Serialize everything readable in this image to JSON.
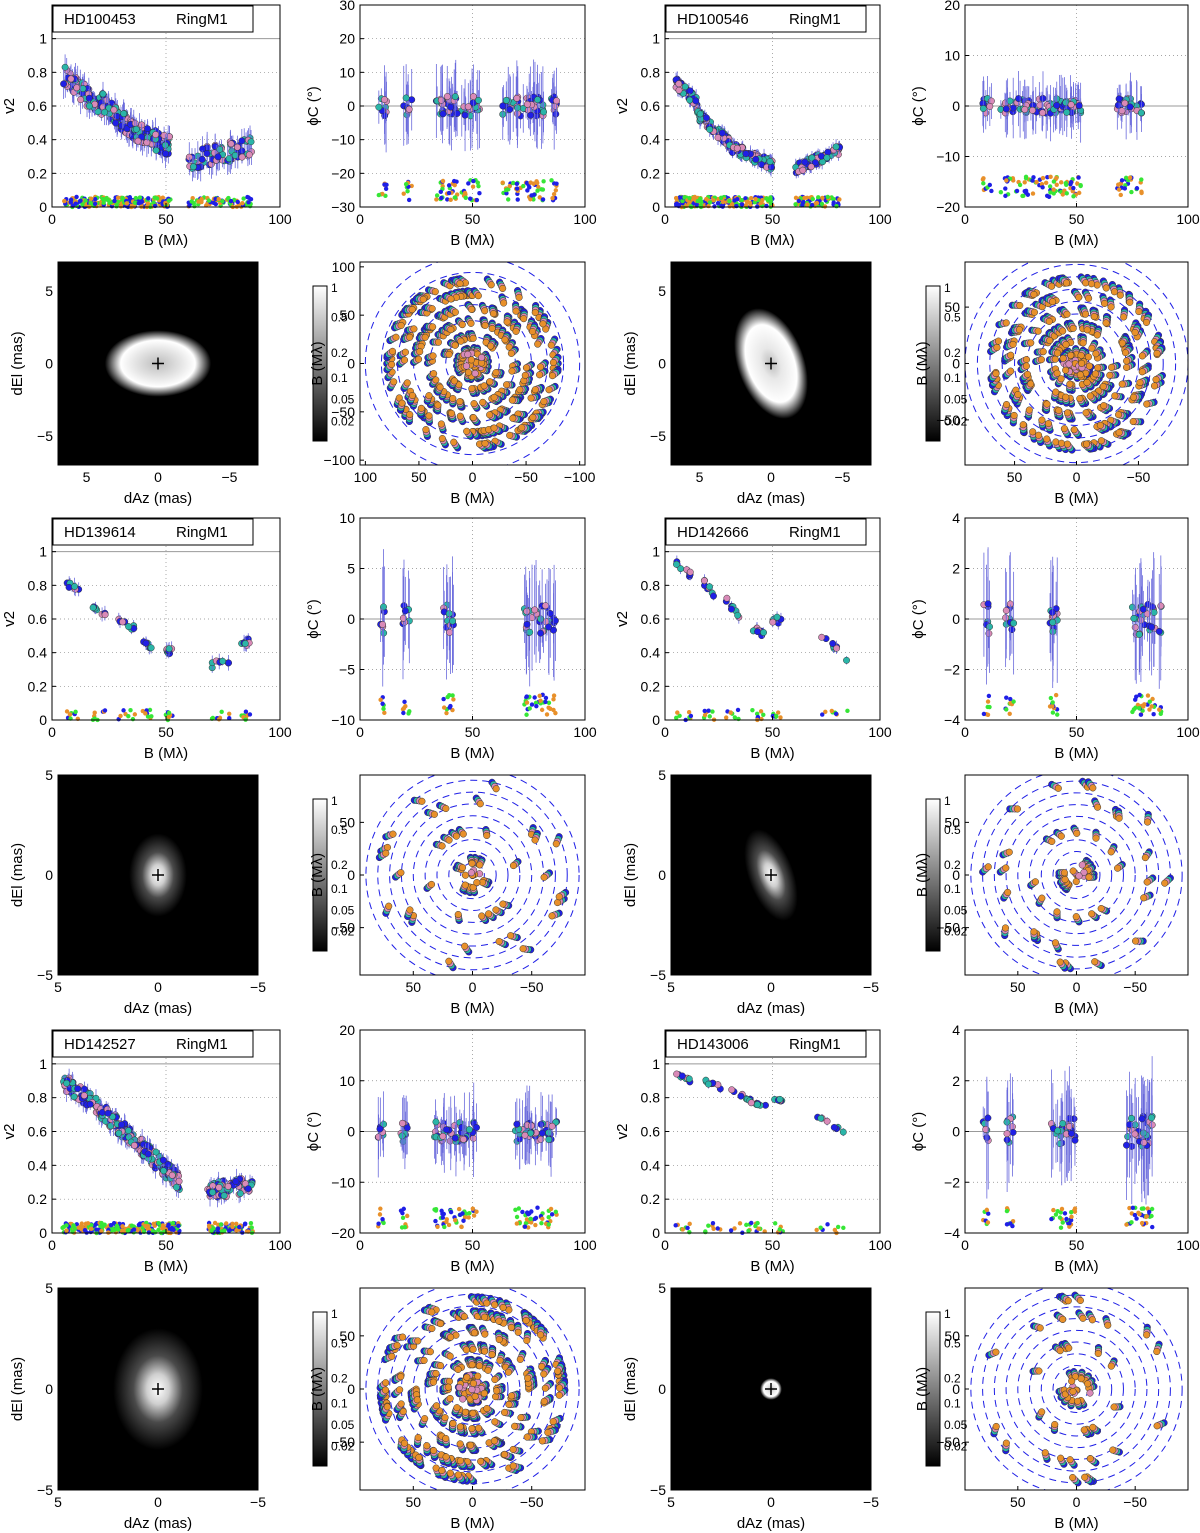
{
  "colors": {
    "blue": "#1f1fe6",
    "cyan": "#2ab5a8",
    "pink": "#d98ab8",
    "orange": "#e8902a",
    "green": "#36e636",
    "line": "#6a6adc",
    "frame": "#000000"
  },
  "labels": {
    "baseline": "B (Mλ)",
    "v2": "v2",
    "phi": "ϕC (°)",
    "dEl": "dEl (mas)",
    "dAz": "dAz (mas)"
  },
  "colorbar_ticks": [
    "1",
    "0.5",
    "0.2",
    "0.1",
    "0.05",
    "0.02"
  ],
  "chart_data": [
    {
      "type": "scatter",
      "panel": "v2",
      "star": "HD100453",
      "model": "RingM1",
      "xlim": [
        0,
        100
      ],
      "ylim": [
        0,
        1.2
      ],
      "xticks": [
        "0",
        "50",
        "100"
      ],
      "yticks": [
        "0",
        "0.2",
        "0.4",
        "0.6",
        "0.8",
        "1"
      ],
      "shape": {
        "type": "ring",
        "clusters": [
          [
            5,
            22,
            0.78,
            0.58
          ],
          [
            22,
            36,
            0.62,
            0.45
          ],
          [
            36,
            52,
            0.45,
            0.36
          ],
          [
            60,
            88,
            0.28,
            0.36
          ]
        ],
        "noise": 0.07,
        "scatter": 0.06
      }
    },
    {
      "type": "scatter",
      "panel": "phi",
      "star": "HD100453",
      "model": "RingM1",
      "xlim": [
        0,
        100
      ],
      "ylim": [
        -30,
        30
      ],
      "xticks": [
        "0",
        "50",
        "100"
      ],
      "yticks": [
        "-30",
        "-20",
        "-10",
        "0",
        "10",
        "20",
        "30"
      ],
      "shape": {
        "clusters": [
          [
            8,
            12
          ],
          [
            19,
            23
          ],
          [
            33,
            54
          ],
          [
            63,
            88
          ]
        ],
        "noise": 6,
        "low": -28
      }
    },
    {
      "type": "scatter",
      "panel": "v2",
      "star": "HD100546",
      "model": "RingM1",
      "xlim": [
        0,
        100
      ],
      "ylim": [
        0,
        1.2
      ],
      "xticks": [
        "0",
        "50",
        "100"
      ],
      "yticks": [
        "0",
        "0.2",
        "0.4",
        "0.6",
        "0.8",
        "1"
      ],
      "shape": {
        "type": "ring",
        "clusters": [
          [
            5,
            15,
            0.74,
            0.62
          ],
          [
            15,
            30,
            0.55,
            0.38
          ],
          [
            30,
            50,
            0.36,
            0.25
          ],
          [
            60,
            82,
            0.22,
            0.35
          ]
        ],
        "noise": 0.04,
        "scatter": 0.03
      }
    },
    {
      "type": "scatter",
      "panel": "phi",
      "star": "HD100546",
      "model": "RingM1",
      "xlim": [
        0,
        100
      ],
      "ylim": [
        -20,
        20
      ],
      "xticks": [
        "0",
        "50",
        "100"
      ],
      "yticks": [
        "-20",
        "-10",
        "0",
        "10",
        "20"
      ],
      "shape": {
        "clusters": [
          [
            8,
            12
          ],
          [
            16,
            52
          ],
          [
            68,
            80
          ]
        ],
        "noise": 3,
        "low": -18
      }
    },
    {
      "type": "heatmap",
      "panel": "image",
      "star": "HD100453",
      "xlim": [
        7,
        -7
      ],
      "ylim": [
        -7,
        7
      ],
      "xticks": [
        "5",
        "0",
        "-5"
      ],
      "yticks": [
        "-5",
        "0",
        "5"
      ],
      "shape": {
        "kind": "ring",
        "rx": 2.4,
        "ry": 1.5,
        "angle": 0,
        "width": 0.8
      }
    },
    {
      "type": "scatter",
      "panel": "uv",
      "star": "HD100453",
      "xlim": [
        105,
        -105
      ],
      "ylim": [
        -105,
        105
      ],
      "xticks": [
        "100",
        "50",
        "0",
        "-50",
        "-100"
      ],
      "yticks": [
        "-100",
        "-50",
        "0",
        "50",
        "100"
      ],
      "shape": {
        "radii": [
          15,
          28,
          42,
          55,
          68,
          80
        ],
        "rings": [
          10,
          25,
          40,
          55,
          70,
          85,
          100
        ]
      }
    },
    {
      "type": "heatmap",
      "panel": "image",
      "star": "HD100546",
      "xlim": [
        7,
        -7
      ],
      "ylim": [
        -7,
        7
      ],
      "xticks": [
        "5",
        "0",
        "-5"
      ],
      "yticks": [
        "-5",
        "0",
        "5"
      ],
      "shape": {
        "kind": "ring",
        "rx": 1.5,
        "ry": 2.6,
        "angle": -20,
        "width": 0.9
      }
    },
    {
      "type": "scatter",
      "panel": "uv",
      "star": "HD100546",
      "xlim": [
        90,
        -90
      ],
      "ylim": [
        -90,
        90
      ],
      "xticks": [
        "50",
        "0",
        "-50"
      ],
      "yticks": [
        "-50",
        "0",
        "50"
      ],
      "shape": {
        "radii": [
          12,
          22,
          33,
          45,
          58,
          70
        ],
        "rings": [
          10,
          20,
          30,
          40,
          50,
          60,
          70,
          80,
          90
        ]
      }
    },
    {
      "type": "scatter",
      "panel": "v2",
      "star": "HD139614",
      "model": "RingM1",
      "xlim": [
        0,
        100
      ],
      "ylim": [
        0,
        1.2
      ],
      "xticks": [
        "0",
        "50",
        "100"
      ],
      "yticks": [
        "0",
        "0.2",
        "0.4",
        "0.6",
        "0.8",
        "1"
      ],
      "shape": {
        "type": "sparse",
        "clusters": [
          [
            5,
            12,
            0.82,
            0.76
          ],
          [
            18,
            24,
            0.66,
            0.62
          ],
          [
            28,
            36,
            0.6,
            0.55
          ],
          [
            40,
            44,
            0.47,
            0.44
          ],
          [
            50,
            55,
            0.42,
            0.4
          ],
          [
            70,
            78,
            0.33,
            0.35
          ],
          [
            83,
            88,
            0.45,
            0.47
          ]
        ],
        "noise": 0.04,
        "scatter": 0.02
      }
    },
    {
      "type": "scatter",
      "panel": "phi",
      "star": "HD139614",
      "model": "RingM1",
      "xlim": [
        0,
        100
      ],
      "ylim": [
        -10,
        10
      ],
      "xticks": [
        "0",
        "50",
        "100"
      ],
      "yticks": [
        "-10",
        "-5",
        "0",
        "5",
        "10"
      ],
      "shape": {
        "clusters": [
          [
            9,
            11
          ],
          [
            19,
            22
          ],
          [
            37,
            42
          ],
          [
            73,
            87
          ]
        ],
        "noise": 3,
        "low": -9.5
      }
    },
    {
      "type": "scatter",
      "panel": "v2",
      "star": "HD142666",
      "model": "RingM1",
      "xlim": [
        0,
        100
      ],
      "ylim": [
        0,
        1.2
      ],
      "xticks": [
        "0",
        "50",
        "100"
      ],
      "yticks": [
        "0",
        "0.2",
        "0.4",
        "0.6",
        "0.8",
        "1"
      ],
      "shape": {
        "type": "sparse",
        "clusters": [
          [
            5,
            12,
            0.93,
            0.86
          ],
          [
            18,
            24,
            0.82,
            0.72
          ],
          [
            28,
            36,
            0.72,
            0.58
          ],
          [
            40,
            46,
            0.55,
            0.5
          ],
          [
            50,
            56,
            0.6,
            0.58
          ],
          [
            72,
            86,
            0.5,
            0.35
          ]
        ],
        "noise": 0.03,
        "scatter": 0.02
      }
    },
    {
      "type": "scatter",
      "panel": "phi",
      "star": "HD142666",
      "model": "RingM1",
      "xlim": [
        0,
        100
      ],
      "ylim": [
        -4,
        4
      ],
      "xticks": [
        "0",
        "50",
        "100"
      ],
      "yticks": [
        "-4",
        "-2",
        "0",
        "2",
        "4"
      ],
      "shape": {
        "clusters": [
          [
            8,
            11
          ],
          [
            18,
            22
          ],
          [
            38,
            43
          ],
          [
            75,
            88
          ]
        ],
        "noise": 1.3,
        "low": -3.8
      }
    },
    {
      "type": "heatmap",
      "panel": "image",
      "star": "HD139614",
      "xlim": [
        5,
        -5
      ],
      "ylim": [
        -5,
        5
      ],
      "xticks": [
        "5",
        "0",
        "-5"
      ],
      "yticks": [
        "-5",
        "0",
        "5"
      ],
      "shape": {
        "kind": "blob",
        "rx": 0.45,
        "ry": 0.65,
        "angle": 0
      }
    },
    {
      "type": "scatter",
      "panel": "uv",
      "star": "HD139614",
      "xlim": [
        95,
        -95
      ],
      "ylim": [
        -95,
        95
      ],
      "xticks": [
        "50",
        "0",
        "-50"
      ],
      "yticks": [
        "-50",
        "0",
        "50"
      ],
      "shape": {
        "radii": [
          15,
          40,
          65,
          80
        ],
        "sparse": true,
        "rings": [
          10,
          20,
          30,
          40,
          50,
          60,
          70,
          80,
          90
        ]
      }
    },
    {
      "type": "heatmap",
      "panel": "image",
      "star": "HD142666",
      "xlim": [
        5,
        -5
      ],
      "ylim": [
        -5,
        5
      ],
      "xticks": [
        "5",
        "0",
        "-5"
      ],
      "yticks": [
        "-5",
        "0",
        "5"
      ],
      "shape": {
        "kind": "blob",
        "rx": 0.35,
        "ry": 0.75,
        "angle": -20
      }
    },
    {
      "type": "scatter",
      "panel": "uv",
      "star": "HD142666",
      "xlim": [
        95,
        -95
      ],
      "ylim": [
        -95,
        95
      ],
      "xticks": [
        "50",
        "0",
        "-50"
      ],
      "yticks": [
        "-50",
        "0",
        "50"
      ],
      "shape": {
        "radii": [
          15,
          40,
          65,
          80
        ],
        "sparse": true,
        "rings": [
          10,
          20,
          30,
          40,
          50,
          60,
          70,
          80,
          90
        ]
      }
    },
    {
      "type": "scatter",
      "panel": "v2",
      "star": "HD142527",
      "model": "RingM1",
      "xlim": [
        0,
        100
      ],
      "ylim": [
        0,
        1.2
      ],
      "xticks": [
        "0",
        "50",
        "100"
      ],
      "yticks": [
        "0",
        "0.2",
        "0.4",
        "0.6",
        "0.8",
        "1"
      ],
      "shape": {
        "type": "ring",
        "clusters": [
          [
            5,
            22,
            0.9,
            0.72
          ],
          [
            22,
            40,
            0.72,
            0.5
          ],
          [
            40,
            56,
            0.5,
            0.3
          ],
          [
            68,
            88,
            0.25,
            0.28
          ]
        ],
        "noise": 0.05,
        "scatter": 0.05
      }
    },
    {
      "type": "scatter",
      "panel": "phi",
      "star": "HD142527",
      "model": "RingM1",
      "xlim": [
        0,
        100
      ],
      "ylim": [
        -20,
        20
      ],
      "xticks": [
        "0",
        "50",
        "100"
      ],
      "yticks": [
        "-20",
        "-10",
        "0",
        "10",
        "20"
      ],
      "shape": {
        "clusters": [
          [
            8,
            11
          ],
          [
            18,
            22
          ],
          [
            33,
            52
          ],
          [
            68,
            88
          ]
        ],
        "noise": 4,
        "low": -19
      }
    },
    {
      "type": "scatter",
      "panel": "v2",
      "star": "HD143006",
      "model": "RingM1",
      "xlim": [
        0,
        100
      ],
      "ylim": [
        0,
        1.2
      ],
      "xticks": [
        "0",
        "50",
        "100"
      ],
      "yticks": [
        "0",
        "0.2",
        "0.4",
        "0.6",
        "0.8",
        "1"
      ],
      "shape": {
        "type": "sparse",
        "clusters": [
          [
            5,
            12,
            0.94,
            0.9
          ],
          [
            18,
            26,
            0.9,
            0.86
          ],
          [
            30,
            40,
            0.86,
            0.78
          ],
          [
            40,
            48,
            0.78,
            0.74
          ],
          [
            50,
            56,
            0.8,
            0.78
          ],
          [
            70,
            85,
            0.7,
            0.58
          ]
        ],
        "noise": 0.02,
        "scatter": 0.01
      }
    },
    {
      "type": "scatter",
      "panel": "phi",
      "star": "HD143006",
      "model": "RingM1",
      "xlim": [
        0,
        100
      ],
      "ylim": [
        -4,
        4
      ],
      "xticks": [
        "0",
        "50",
        "100"
      ],
      "yticks": [
        "-4",
        "-2",
        "0",
        "2",
        "4"
      ],
      "shape": {
        "clusters": [
          [
            8,
            11
          ],
          [
            18,
            22
          ],
          [
            38,
            50
          ],
          [
            72,
            86
          ]
        ],
        "noise": 1.2,
        "low": -3.8
      }
    },
    {
      "type": "heatmap",
      "panel": "image",
      "star": "HD142527",
      "xlim": [
        5,
        -5
      ],
      "ylim": [
        -5,
        5
      ],
      "xticks": [
        "5",
        "0",
        "-5"
      ],
      "yticks": [
        "-5",
        "0",
        "5"
      ],
      "shape": {
        "kind": "blob",
        "rx": 0.7,
        "ry": 0.95,
        "angle": 0
      }
    },
    {
      "type": "scatter",
      "panel": "uv",
      "star": "HD142527",
      "xlim": [
        95,
        -95
      ],
      "ylim": [
        -95,
        95
      ],
      "xticks": [
        "50",
        "0",
        "-50"
      ],
      "yticks": [
        "-50",
        "0",
        "50"
      ],
      "shape": {
        "radii": [
          12,
          25,
          38,
          52,
          66,
          78
        ],
        "rings": [
          10,
          20,
          30,
          40,
          50,
          60,
          70,
          80,
          90
        ]
      }
    },
    {
      "type": "heatmap",
      "panel": "image",
      "star": "HD143006",
      "xlim": [
        5,
        -5
      ],
      "ylim": [
        -5,
        5
      ],
      "xticks": [
        "5",
        "0",
        "-5"
      ],
      "yticks": [
        "-5",
        "0",
        "5"
      ],
      "shape": {
        "kind": "ring",
        "rx": 0.35,
        "ry": 0.35,
        "angle": 0,
        "width": 0.18
      }
    },
    {
      "type": "scatter",
      "panel": "uv",
      "star": "HD143006",
      "xlim": [
        95,
        -95
      ],
      "ylim": [
        -95,
        95
      ],
      "xticks": [
        "50",
        "0",
        "-50"
      ],
      "yticks": [
        "-50",
        "0",
        "50"
      ],
      "shape": {
        "radii": [
          15,
          40,
          65,
          80
        ],
        "sparse": true,
        "rings": [
          10,
          20,
          30,
          40,
          50,
          60,
          70,
          80,
          90
        ]
      }
    }
  ]
}
